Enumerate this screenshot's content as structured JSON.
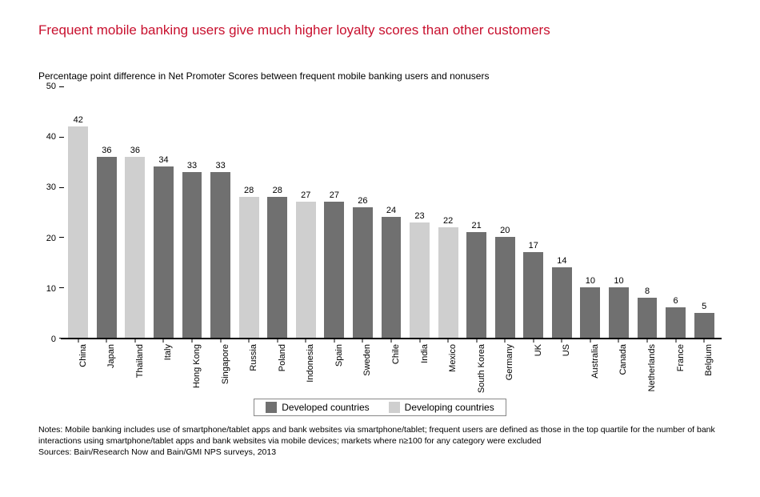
{
  "title": {
    "text": "Frequent mobile banking users give much higher loyalty scores than other customers",
    "color": "#c8102e",
    "fontsize": 17
  },
  "subtitle": "Percentage point difference in Net Promoter Scores between frequent mobile banking users and nonusers",
  "chart": {
    "type": "bar",
    "ylim": [
      0,
      50
    ],
    "ytick_step": 10,
    "yticks": [
      0,
      10,
      20,
      30,
      40,
      50
    ],
    "background_color": "#ffffff",
    "axis_color": "#000000",
    "bar_width_pct": 70,
    "value_fontsize": 11,
    "label_fontsize": 11,
    "colors": {
      "developed": "#707070",
      "developing": "#cfcfcf"
    },
    "data": [
      {
        "label": "China",
        "value": 42,
        "group": "developing"
      },
      {
        "label": "Japan",
        "value": 36,
        "group": "developed"
      },
      {
        "label": "Thailand",
        "value": 36,
        "group": "developing"
      },
      {
        "label": "Italy",
        "value": 34,
        "group": "developed"
      },
      {
        "label": "Hong Kong",
        "value": 33,
        "group": "developed"
      },
      {
        "label": "Singapore",
        "value": 33,
        "group": "developed"
      },
      {
        "label": "Russia",
        "value": 28,
        "group": "developing"
      },
      {
        "label": "Poland",
        "value": 28,
        "group": "developed"
      },
      {
        "label": "Indonesia",
        "value": 27,
        "group": "developing"
      },
      {
        "label": "Spain",
        "value": 27,
        "group": "developed"
      },
      {
        "label": "Sweden",
        "value": 26,
        "group": "developed"
      },
      {
        "label": "Chile",
        "value": 24,
        "group": "developed"
      },
      {
        "label": "India",
        "value": 23,
        "group": "developing"
      },
      {
        "label": "Mexico",
        "value": 22,
        "group": "developing"
      },
      {
        "label": "South Korea",
        "value": 21,
        "group": "developed"
      },
      {
        "label": "Germany",
        "value": 20,
        "group": "developed"
      },
      {
        "label": "UK",
        "value": 17,
        "group": "developed"
      },
      {
        "label": "US",
        "value": 14,
        "group": "developed"
      },
      {
        "label": "Australia",
        "value": 10,
        "group": "developed"
      },
      {
        "label": "Canada",
        "value": 10,
        "group": "developed"
      },
      {
        "label": "Netherlands",
        "value": 8,
        "group": "developed"
      },
      {
        "label": "France",
        "value": 6,
        "group": "developed"
      },
      {
        "label": "Belgium",
        "value": 5,
        "group": "developed"
      }
    ]
  },
  "legend": {
    "items": [
      {
        "label": "Developed countries",
        "color_key": "developed"
      },
      {
        "label": "Developing countries",
        "color_key": "developing"
      }
    ],
    "border_color": "#888888"
  },
  "notes": {
    "line1": "Notes: Mobile banking includes use of smartphone/tablet apps and bank websites via smartphone/tablet; frequent users are defined as those in the top quartile for the number of bank interactions using smartphone/tablet apps and bank websites via mobile devices; markets where n≥100 for any category were excluded",
    "line2": "Sources: Bain/Research Now and Bain/GMI NPS surveys, 2013"
  }
}
